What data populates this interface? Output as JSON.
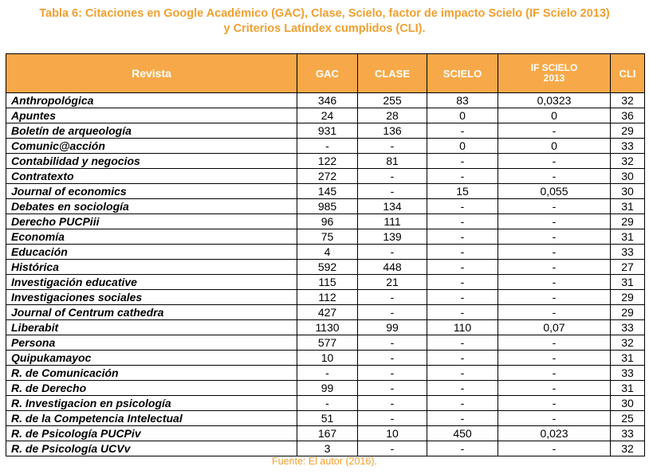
{
  "caption": {
    "line1": "Tabla 6: Citaciones en Google Académico (GAC), Clase, Scielo, factor de impacto Scielo (IF Scielo 2013)",
    "line2": "y Criterios Latíndex cumplidos (CLI)."
  },
  "table": {
    "headers": {
      "revista": "Revista",
      "gac": "GAC",
      "clase": "CLASE",
      "scielo": "SCIELO",
      "if_scielo": "IF SCIELO 2013",
      "cli": "CLI"
    },
    "rows": [
      {
        "revista": "Anthropológica",
        "gac": "346",
        "clase": "255",
        "scielo": "83",
        "if": "0,0323",
        "cli": "32"
      },
      {
        "revista": "Apuntes",
        "gac": "24",
        "clase": "28",
        "scielo": "0",
        "if": "0",
        "cli": "36"
      },
      {
        "revista": "Boletín de arqueología",
        "gac": "931",
        "clase": "136",
        "scielo": "-",
        "if": "-",
        "cli": "29"
      },
      {
        "revista": "Comunic@acción",
        "gac": "-",
        "clase": "-",
        "scielo": "0",
        "if": "0",
        "cli": "33"
      },
      {
        "revista": "Contabilidad y negocios",
        "gac": "122",
        "clase": "81",
        "scielo": "-",
        "if": "-",
        "cli": "32"
      },
      {
        "revista": "Contratexto",
        "gac": "272",
        "clase": "-",
        "scielo": "-",
        "if": "-",
        "cli": "30"
      },
      {
        "revista": "Journal of economics",
        "gac": "145",
        "clase": "-",
        "scielo": "15",
        "if": "0,055",
        "cli": "30"
      },
      {
        "revista": "Debates en sociología",
        "gac": "985",
        "clase": "134",
        "scielo": "-",
        "if": "-",
        "cli": "31"
      },
      {
        "revista": "Derecho PUCPiii",
        "gac": "96",
        "clase": "111",
        "scielo": "-",
        "if": "-",
        "cli": "29"
      },
      {
        "revista": "Economía",
        "gac": "75",
        "clase": "139",
        "scielo": "-",
        "if": "-",
        "cli": "31"
      },
      {
        "revista": "Educación",
        "gac": "4",
        "clase": "-",
        "scielo": "-",
        "if": "-",
        "cli": "33"
      },
      {
        "revista": "Histórica",
        "gac": "592",
        "clase": "448",
        "scielo": "-",
        "if": "-",
        "cli": "27"
      },
      {
        "revista": "Investigación educative",
        "gac": "115",
        "clase": "21",
        "scielo": "-",
        "if": "-",
        "cli": "31"
      },
      {
        "revista": "Investigaciones sociales",
        "gac": "112",
        "clase": "-",
        "scielo": "-",
        "if": "-",
        "cli": "29"
      },
      {
        "revista": "Journal of Centrum cathedra",
        "gac": "427",
        "clase": "-",
        "scielo": "-",
        "if": "-",
        "cli": "29"
      },
      {
        "revista": "Liberabit",
        "gac": "1130",
        "clase": "99",
        "scielo": "110",
        "if": "0,07",
        "cli": "33"
      },
      {
        "revista": "Persona",
        "gac": "577",
        "clase": "-",
        "scielo": "-",
        "if": "-",
        "cli": "32"
      },
      {
        "revista": "Quipukamayoc",
        "gac": "10",
        "clase": "-",
        "scielo": "-",
        "if": "-",
        "cli": "31"
      },
      {
        "revista": "R. de Comunicación",
        "gac": "-",
        "clase": "-",
        "scielo": "-",
        "if": "-",
        "cli": "33"
      },
      {
        "revista": "R. de Derecho",
        "gac": "99",
        "clase": "-",
        "scielo": "-",
        "if": "-",
        "cli": "31"
      },
      {
        "revista": "R. Investigacion en  psicología",
        "gac": "-",
        "clase": "-",
        "scielo": "-",
        "if": "-",
        "cli": "30"
      },
      {
        "revista": "R. de la Competencia  Intelectual",
        "gac": "51",
        "clase": "-",
        "scielo": "-",
        "if": "-",
        "cli": "25"
      },
      {
        "revista": "R. de Psicología PUCPiv",
        "gac": "167",
        "clase": "10",
        "scielo": "450",
        "if": "0,023",
        "cli": "33"
      },
      {
        "revista": "R. de Psicología UCVv",
        "gac": "3",
        "clase": "-",
        "scielo": "-",
        "if": "-",
        "cli": "32"
      }
    ]
  },
  "footer": {
    "source": "Fuente: El autor (2016)."
  },
  "colors": {
    "accent": "#f7a949",
    "caption_text": "#f0a030",
    "header_text": "#ffffff"
  }
}
